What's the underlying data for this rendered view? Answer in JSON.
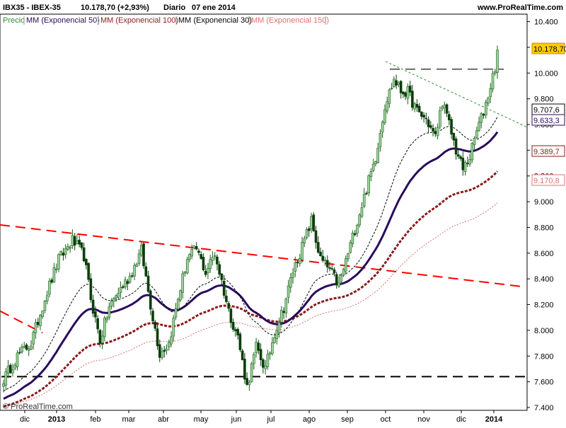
{
  "header": {
    "symbol": "IBX35 - IBEX-35",
    "last": "10.178,70 (+2,93%)",
    "period": "Diario",
    "date": "07 ene 2014",
    "site": "www.ProRealTime.com"
  },
  "legend": [
    {
      "label": "Precio",
      "color": "#2e8b2e"
    },
    {
      "label": "MM (Exponencial 50)",
      "color": "#2a0a5e"
    },
    {
      "label": "MM (Exponencial 100)",
      "color": "#8b1a1a"
    },
    {
      "label": "MM (Exponencial 30)",
      "color": "#000000"
    },
    {
      "label": "MM (Exponencial 150)",
      "color": "#e07070"
    }
  ],
  "copyright": "© ProRealTime.com",
  "colors": {
    "price_up": "#1f5f1f",
    "price_body_up": "#9ad29a",
    "price_down": "#0b3d0b",
    "ema30": "#000000",
    "ema50": "#2a0a5e",
    "ema100": "#8b1a1a",
    "ema150": "#e07070",
    "trend_red": "#ff0000",
    "trend_green": "#2e8b2e",
    "hline": "#000000",
    "last_label_bg": "#ffcc00"
  },
  "chart_data": {
    "type": "candlestick",
    "title": "IBX35 - IBEX-35",
    "x_tick_labels": [
      "dic",
      "2013",
      "feb",
      "mar",
      "abr",
      "may",
      "jun",
      "jul",
      "ago",
      "sep",
      "oct",
      "nov",
      "dic",
      "2014"
    ],
    "y_tick_labels": [
      "7.400",
      "7.600",
      "7.800",
      "8.000",
      "8.200",
      "8.400",
      "8.600",
      "8.800",
      "9.000",
      "9.200",
      "9.400",
      "9.600",
      "9.800",
      "10.000",
      "10.200",
      "10.400"
    ],
    "ylim": [
      7400,
      10480
    ],
    "price_anchors": [
      [
        0,
        7620
      ],
      [
        6,
        7800
      ],
      [
        12,
        7900
      ],
      [
        18,
        8250
      ],
      [
        24,
        8550
      ],
      [
        30,
        8700
      ],
      [
        35,
        8580
      ],
      [
        38,
        8250
      ],
      [
        42,
        7920
      ],
      [
        46,
        8180
      ],
      [
        50,
        8300
      ],
      [
        55,
        8420
      ],
      [
        60,
        8620
      ],
      [
        64,
        8200
      ],
      [
        68,
        7820
      ],
      [
        72,
        7900
      ],
      [
        76,
        8250
      ],
      [
        80,
        8560
      ],
      [
        84,
        8630
      ],
      [
        88,
        8450
      ],
      [
        92,
        8600
      ],
      [
        95,
        8380
      ],
      [
        98,
        8150
      ],
      [
        102,
        7950
      ],
      [
        106,
        7560
      ],
      [
        110,
        7870
      ],
      [
        114,
        7700
      ],
      [
        118,
        7980
      ],
      [
        122,
        8180
      ],
      [
        126,
        8460
      ],
      [
        130,
        8650
      ],
      [
        134,
        8850
      ],
      [
        138,
        8550
      ],
      [
        142,
        8470
      ],
      [
        146,
        8350
      ],
      [
        150,
        8600
      ],
      [
        154,
        8850
      ],
      [
        158,
        9100
      ],
      [
        162,
        9350
      ],
      [
        166,
        9750
      ],
      [
        170,
        9950
      ],
      [
        173,
        9860
      ],
      [
        176,
        9850
      ],
      [
        180,
        9700
      ],
      [
        184,
        9640
      ],
      [
        188,
        9500
      ],
      [
        191,
        9780
      ],
      [
        194,
        9600
      ],
      [
        197,
        9400
      ],
      [
        200,
        9250
      ],
      [
        203,
        9350
      ],
      [
        206,
        9550
      ],
      [
        209,
        9700
      ],
      [
        212,
        9900
      ],
      [
        214,
        10050
      ],
      [
        215,
        10178.7
      ]
    ],
    "indicators": [
      {
        "name": "MM (Exponencial 50)",
        "last": 9633.3
      },
      {
        "name": "MM (Exponencial 100)",
        "last": 9389.7
      },
      {
        "name": "MM (Exponencial 30)",
        "last": 9707.6
      },
      {
        "name": "MM (Exponencial 150)",
        "last": 9170.8
      }
    ],
    "horizontal_levels": [
      10030,
      7640
    ],
    "trendlines": [
      {
        "color": "red",
        "from": [
          0,
          8820
        ],
        "to": [
          230,
          8340
        ]
      },
      {
        "color": "red",
        "from": [
          0,
          8150
        ],
        "to": [
          18,
          7980
        ]
      },
      {
        "color": "green",
        "from": [
          168,
          10090
        ],
        "to": [
          232,
          9580
        ]
      }
    ],
    "last_price_label": "10.178,70",
    "indicator_labels": [
      "9.707,6",
      "9.633,3",
      "9.389,7",
      "9.170,8"
    ],
    "grid": false
  }
}
